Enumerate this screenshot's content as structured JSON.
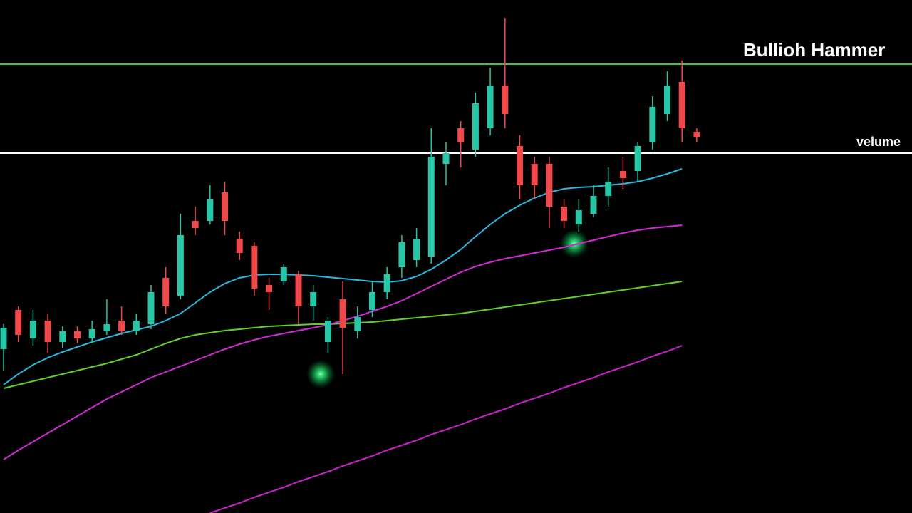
{
  "chart_data": {
    "type": "candlestick",
    "ylim": [
      0,
      720
    ],
    "up_color": "#26c6a6",
    "down_color": "#f0494c",
    "candles": {
      "open": [
        230,
        285,
        245,
        270,
        240,
        255,
        245,
        255,
        270,
        255,
        265,
        330,
        305,
        410,
        410,
        450,
        385,
        375,
        320,
        325,
        335,
        290,
        240,
        300,
        255,
        285,
        310,
        345,
        355,
        360,
        490,
        540,
        510,
        540,
        600,
        515,
        490,
        490,
        430,
        405,
        420,
        445,
        480,
        480,
        520,
        560,
        605,
        535
      ],
      "high": [
        265,
        290,
        285,
        280,
        262,
        262,
        270,
        300,
        290,
        280,
        320,
        345,
        420,
        430,
        460,
        465,
        395,
        380,
        330,
        350,
        340,
        320,
        275,
        325,
        290,
        325,
        345,
        390,
        400,
        540,
        520,
        550,
        590,
        625,
        695,
        530,
        500,
        500,
        440,
        440,
        460,
        485,
        500,
        520,
        585,
        620,
        635,
        540
      ],
      "low": [
        200,
        240,
        235,
        225,
        232,
        238,
        240,
        250,
        250,
        250,
        258,
        280,
        300,
        390,
        405,
        390,
        355,
        305,
        285,
        320,
        265,
        270,
        225,
        195,
        245,
        275,
        300,
        330,
        345,
        350,
        460,
        485,
        500,
        530,
        540,
        440,
        440,
        400,
        400,
        395,
        415,
        430,
        455,
        465,
        510,
        550,
        520,
        520
      ],
      "close": [
        260,
        250,
        270,
        240,
        255,
        245,
        258,
        265,
        255,
        270,
        310,
        290,
        390,
        400,
        440,
        410,
        365,
        315,
        310,
        345,
        290,
        310,
        270,
        260,
        275,
        310,
        335,
        380,
        385,
        500,
        505,
        520,
        575,
        600,
        560,
        460,
        460,
        430,
        410,
        425,
        445,
        465,
        470,
        515,
        570,
        600,
        540,
        528
      ]
    },
    "series": [
      {
        "color": "#2bb8e0",
        "values": [
          180,
          195,
          208,
          218,
          226,
          233,
          240,
          246,
          252,
          257,
          262,
          270,
          280,
          295,
          310,
          322,
          330,
          334,
          335,
          335,
          334,
          333,
          331,
          329,
          327,
          325,
          324,
          326,
          332,
          342,
          355,
          370,
          388,
          405,
          420,
          432,
          442,
          450,
          455,
          457,
          458,
          460,
          462,
          465,
          470,
          476,
          483,
          null
        ]
      },
      {
        "color": "#5fd12a",
        "values": [
          175,
          180,
          185,
          190,
          195,
          200,
          205,
          210,
          216,
          222,
          230,
          238,
          245,
          250,
          253,
          256,
          258,
          260,
          262,
          263,
          264,
          265,
          265,
          266,
          267,
          268,
          270,
          272,
          274,
          276,
          278,
          280,
          283,
          286,
          289,
          292,
          295,
          298,
          301,
          304,
          307,
          310,
          313,
          316,
          319,
          322,
          325,
          null
        ]
      },
      {
        "color": "#d42ad4",
        "values": [
          75,
          88,
          100,
          112,
          124,
          136,
          148,
          160,
          170,
          180,
          190,
          198,
          206,
          214,
          222,
          230,
          237,
          243,
          248,
          252,
          256,
          260,
          264,
          270,
          276,
          283,
          290,
          298,
          308,
          318,
          328,
          338,
          346,
          352,
          357,
          361,
          365,
          369,
          373,
          378,
          383,
          388,
          393,
          397,
          400,
          402,
          404,
          null
        ]
      },
      {
        "color": "#c822c8",
        "values": [
          null,
          null,
          null,
          null,
          null,
          null,
          null,
          null,
          null,
          null,
          null,
          null,
          null,
          null,
          0,
          7,
          14,
          22,
          29,
          36,
          44,
          51,
          58,
          66,
          73,
          80,
          88,
          95,
          102,
          110,
          117,
          124,
          132,
          139,
          146,
          154,
          161,
          168,
          176,
          183,
          190,
          198,
          205,
          212,
          220,
          227,
          235,
          null
        ]
      }
    ],
    "levels": [
      {
        "label": "Bullioh Hammer",
        "value": 630,
        "color": "#3ec93e"
      },
      {
        "label": "velume",
        "value": 505,
        "color": "#ffffff"
      }
    ]
  }
}
